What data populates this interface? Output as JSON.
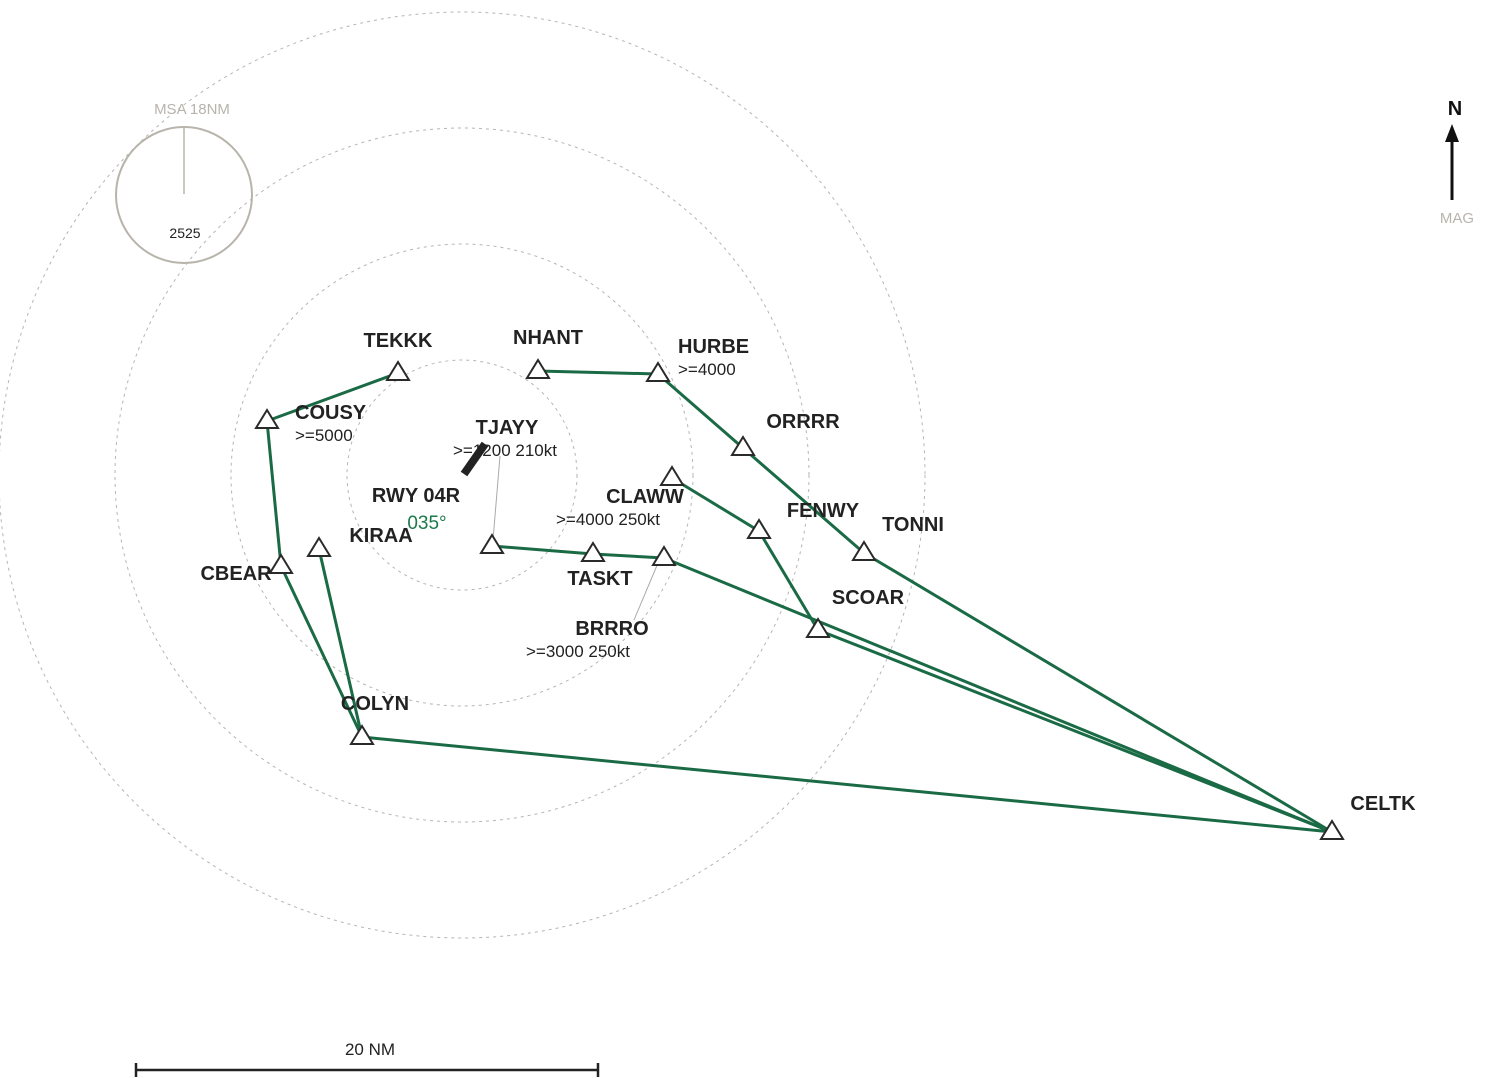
{
  "msa": {
    "label": "MSA 18NM",
    "altitude": "2525"
  },
  "north": {
    "letter": "N",
    "reference": "MAG"
  },
  "runway": {
    "name": "RWY 04R",
    "heading": "035°"
  },
  "scale_bar": {
    "label": "20 NM"
  },
  "fixes": {
    "tekkk": "TEKKK",
    "nhant": "NHANT",
    "hurbe": "HURBE",
    "hurbe_alt": ">=4000",
    "cousy": "COUSY",
    "cousy_alt": ">=5000",
    "tjayy": "TJAYY",
    "tjayy_alt": ">=1200 210kt",
    "orrrr": "ORRRR",
    "claww": "CLAWW",
    "claww_alt": ">=4000 250kt",
    "fenwy": "FENWY",
    "tonni": "TONNI",
    "kiraa": "KIRAA",
    "cbear": "CBEAR",
    "taskt": "TASKT",
    "scoar": "SCOAR",
    "brrro": "BRRRO",
    "brrro_alt": ">=3000 250kt",
    "colyn": "COLYN",
    "celtk": "CELTK"
  },
  "colors": {
    "route": "#1a6b45",
    "rings": "#b5b5b5",
    "msa": "#b8b4ac",
    "heading": "#1a7a4a"
  }
}
